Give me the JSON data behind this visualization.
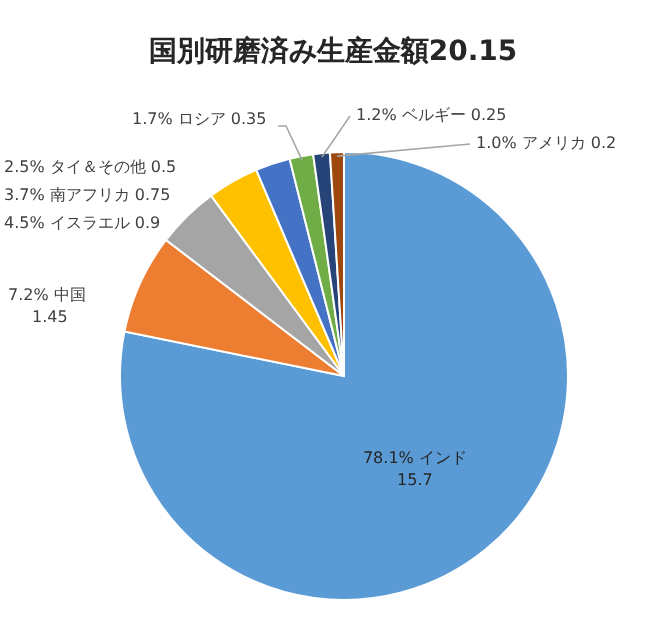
{
  "chart_data": {
    "type": "pie",
    "title": "国別研磨済み生産金額20.15",
    "categories": [
      "インド",
      "中国",
      "イスラエル",
      "南アフリカ",
      "タイ＆その他",
      "ロシア",
      "ベルギー",
      "アメリカ"
    ],
    "values": [
      78.1,
      7.2,
      4.5,
      3.7,
      2.5,
      1.7,
      1.2,
      1.0
    ],
    "value_labels": [
      "78.1%",
      "7.2%",
      "4.5%",
      "3.7%",
      "2.5%",
      "1.7%",
      "1.2%",
      "1.0%"
    ],
    "annotations": [
      "15.7",
      "1.45",
      "0.9",
      "0.75",
      "0.5",
      "0.35",
      "0.25",
      "0.2"
    ],
    "colors": [
      "#5b9bd5",
      "#ed7d31",
      "#a5a5a5",
      "#ffc000",
      "#4472c4",
      "#70ad47",
      "#264478",
      "#9e480e"
    ]
  }
}
